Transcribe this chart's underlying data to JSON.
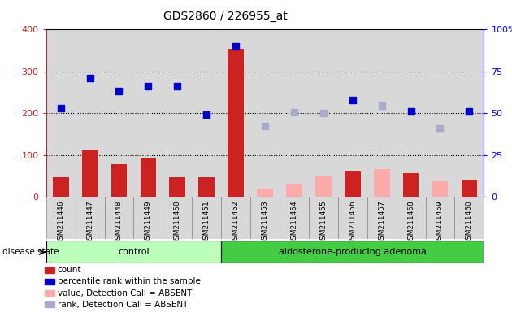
{
  "title": "GDS2860 / 226955_at",
  "samples": [
    "GSM211446",
    "GSM211447",
    "GSM211448",
    "GSM211449",
    "GSM211450",
    "GSM211451",
    "GSM211452",
    "GSM211453",
    "GSM211454",
    "GSM211455",
    "GSM211456",
    "GSM211457",
    "GSM211458",
    "GSM211459",
    "GSM211460"
  ],
  "bar_values": [
    47,
    113,
    77,
    91,
    47,
    47,
    355,
    null,
    null,
    null,
    60,
    null,
    57,
    null,
    40
  ],
  "bar_absent_values": [
    null,
    null,
    null,
    null,
    null,
    null,
    null,
    20,
    30,
    50,
    null,
    67,
    null,
    37,
    null
  ],
  "dot_present": [
    213,
    285,
    252,
    264,
    264,
    196,
    360,
    null,
    null,
    null,
    232,
    null,
    205,
    null,
    204
  ],
  "dot_absent": [
    null,
    null,
    null,
    null,
    null,
    null,
    null,
    170,
    202,
    200,
    null,
    218,
    null,
    163,
    null
  ],
  "bar_color_present": "#cc2222",
  "bar_color_absent": "#ffaaaa",
  "dot_color_present": "#0000cc",
  "dot_color_absent": "#aaaacc",
  "control_indices": [
    0,
    1,
    2,
    3,
    4,
    5
  ],
  "adenoma_indices": [
    6,
    7,
    8,
    9,
    10,
    11,
    12,
    13,
    14
  ],
  "control_label": "control",
  "adenoma_label": "aldosterone-producing adenoma",
  "disease_state_label": "disease state",
  "ylim_left": [
    0,
    400
  ],
  "yticks_left": [
    0,
    100,
    200,
    300,
    400
  ],
  "ytick_labels_left": [
    "0",
    "100",
    "200",
    "300",
    "400"
  ],
  "ytick_labels_right": [
    "0",
    "25",
    "50",
    "75",
    "100%"
  ],
  "grid_values": [
    100,
    200,
    300
  ],
  "plot_bg_color": "#d8d8d8",
  "control_bg": "#bbffbb",
  "adenoma_bg": "#44cc44",
  "legend_items": [
    {
      "label": "count",
      "color": "#cc2222"
    },
    {
      "label": "percentile rank within the sample",
      "color": "#0000cc"
    },
    {
      "label": "value, Detection Call = ABSENT",
      "color": "#ffaaaa"
    },
    {
      "label": "rank, Detection Call = ABSENT",
      "color": "#aaaacc"
    }
  ]
}
